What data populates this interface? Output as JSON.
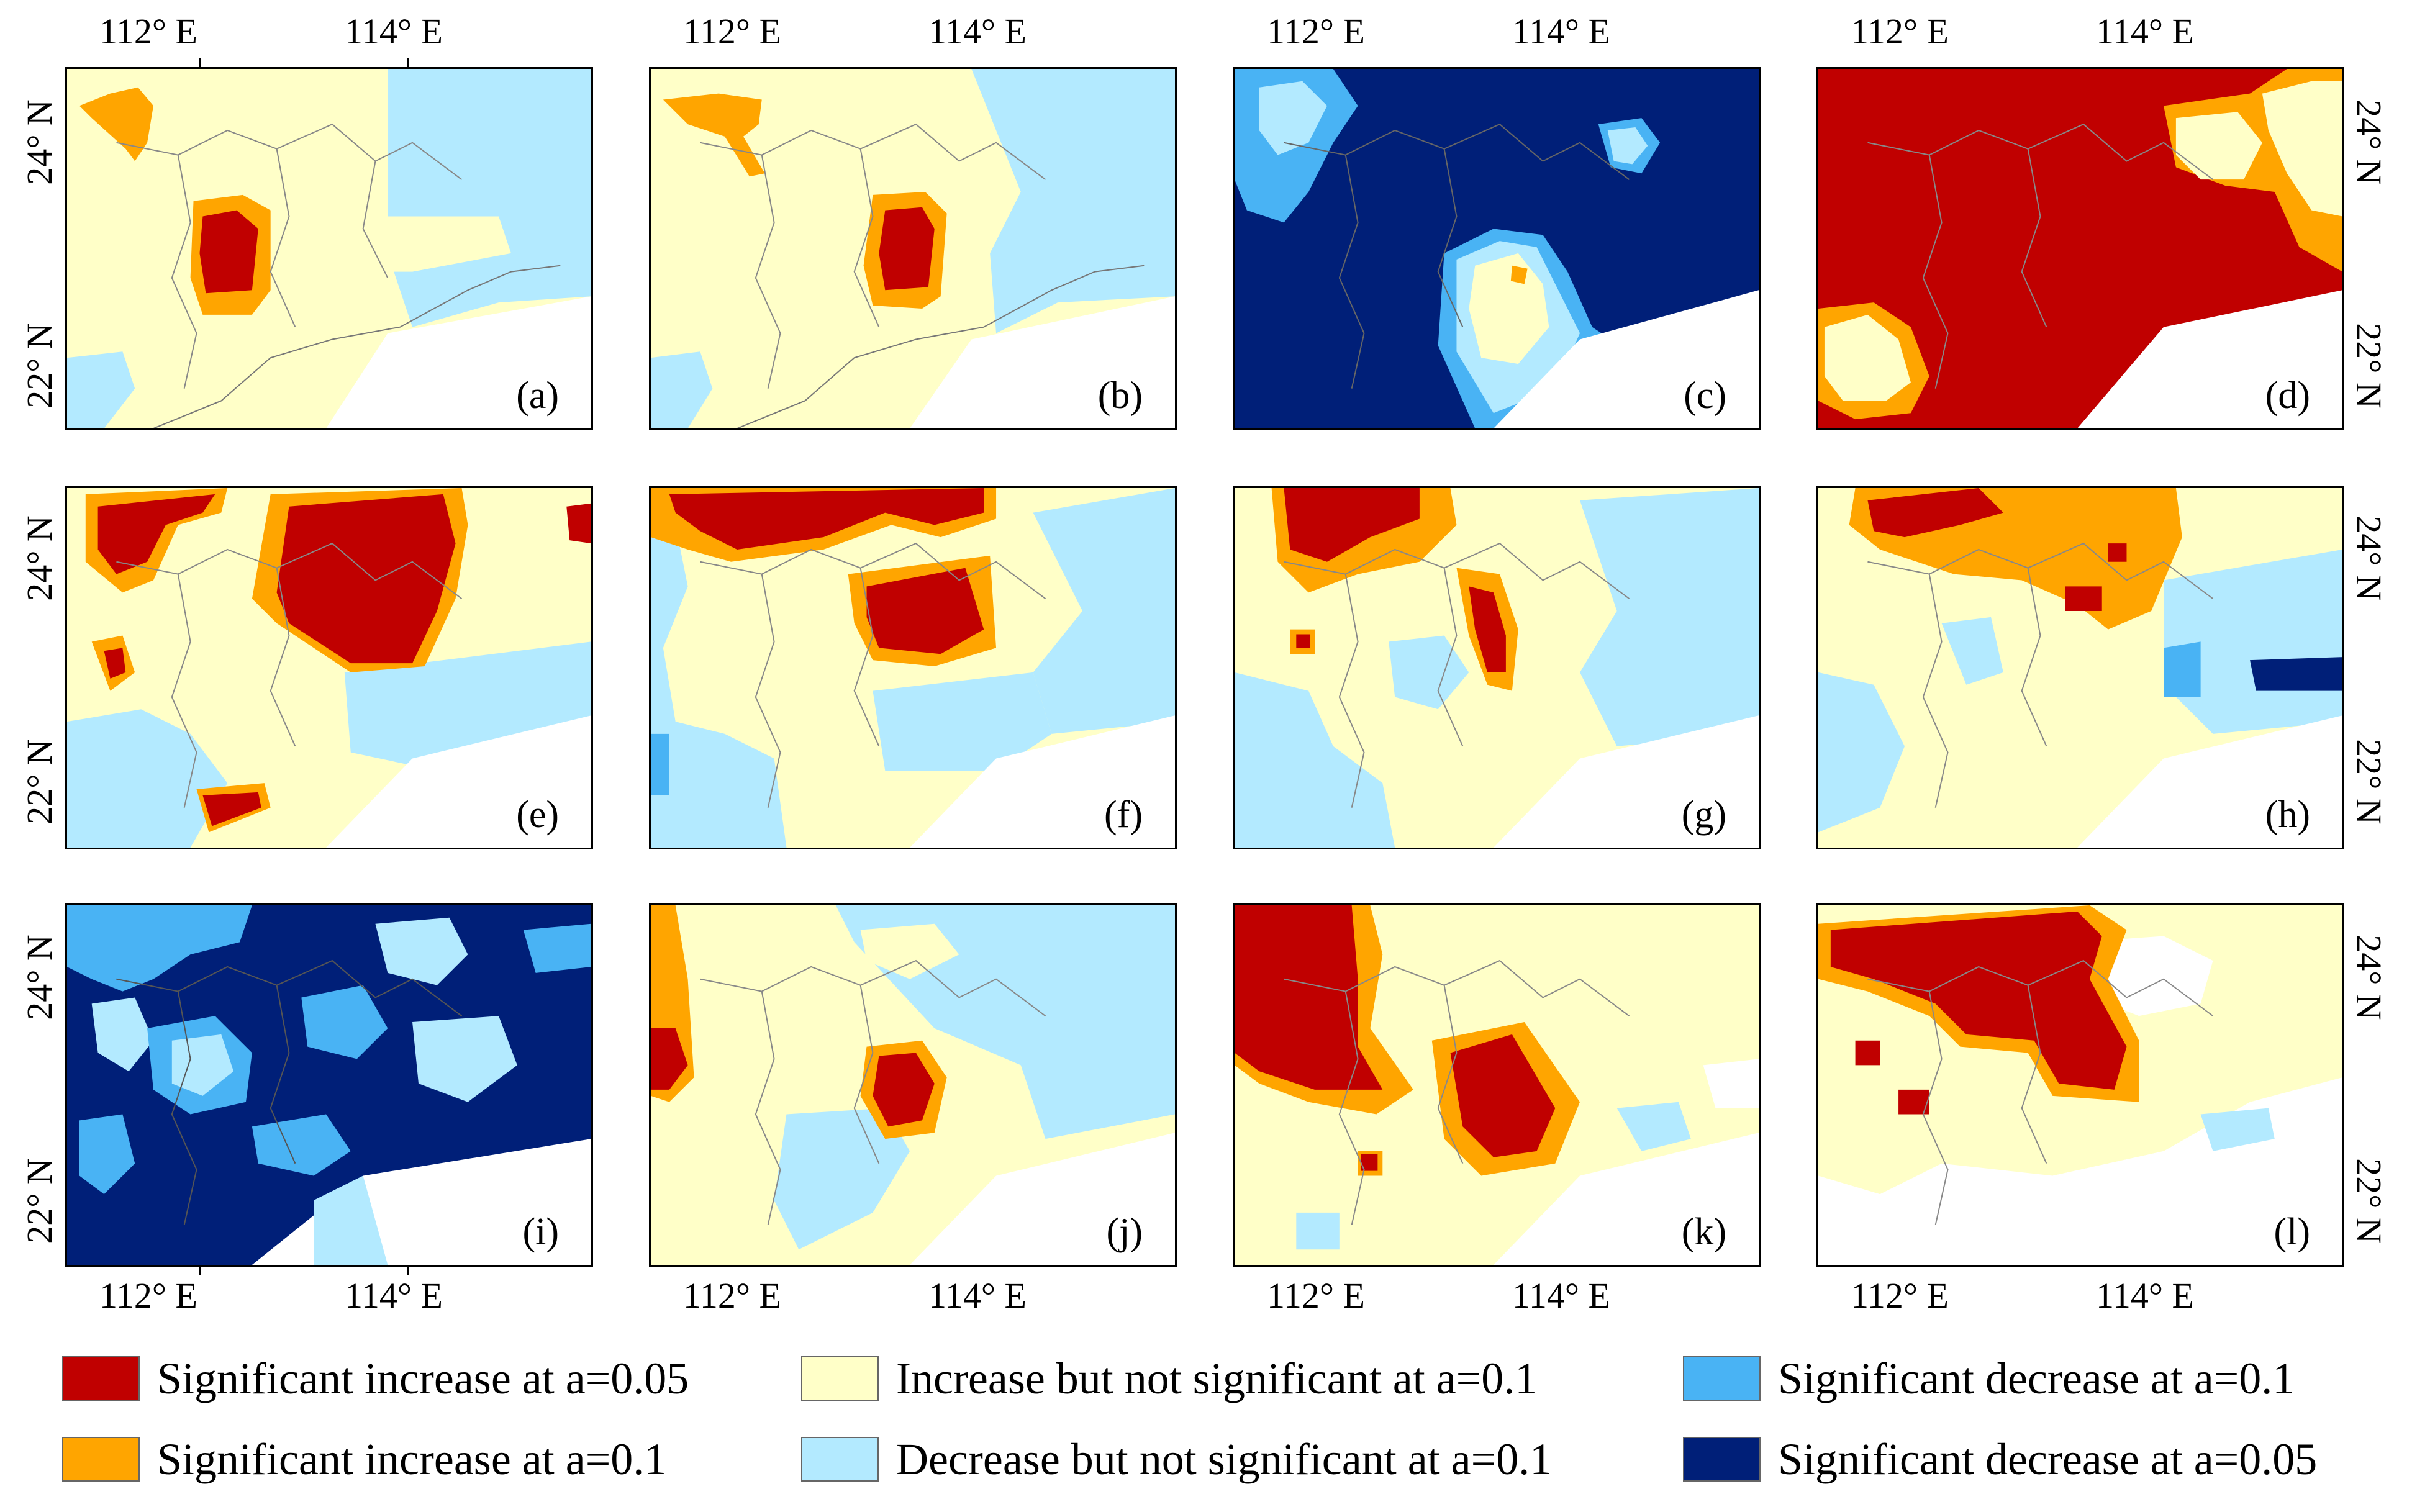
{
  "axes": {
    "x_ticks": [
      "112° E",
      "114° E"
    ],
    "y_ticks": [
      "24° N",
      "22° N"
    ]
  },
  "colors": {
    "sig_inc_005": "#c00000",
    "sig_inc_01": "#ffa500",
    "inc_ns": "#ffffc8",
    "dec_ns": "#b3eaff",
    "sig_dec_01": "#49b3f4",
    "sig_dec_005": "#001f78",
    "no_data": "#ffffff"
  },
  "panels": [
    {
      "label": "(a)"
    },
    {
      "label": "(b)"
    },
    {
      "label": "(c)"
    },
    {
      "label": "(d)"
    },
    {
      "label": "(e)"
    },
    {
      "label": "(f)"
    },
    {
      "label": "(g)"
    },
    {
      "label": "(h)"
    },
    {
      "label": "(i)"
    },
    {
      "label": "(j)"
    },
    {
      "label": "(k)"
    },
    {
      "label": "(l)"
    }
  ],
  "legend": [
    {
      "label": "Significant increase at a=0.05",
      "color": "#c00000"
    },
    {
      "label": "Significant increase at a=0.1",
      "color": "#ffa500"
    },
    {
      "label": "Increase but not significant at a=0.1",
      "color": "#ffffc8"
    },
    {
      "label": "Decrease but not significant at a=0.1",
      "color": "#b3eaff"
    },
    {
      "label": "Significant decrease at a=0.1",
      "color": "#49b3f4"
    },
    {
      "label": "Significant decrease at a=0.05",
      "color": "#001f78"
    }
  ]
}
